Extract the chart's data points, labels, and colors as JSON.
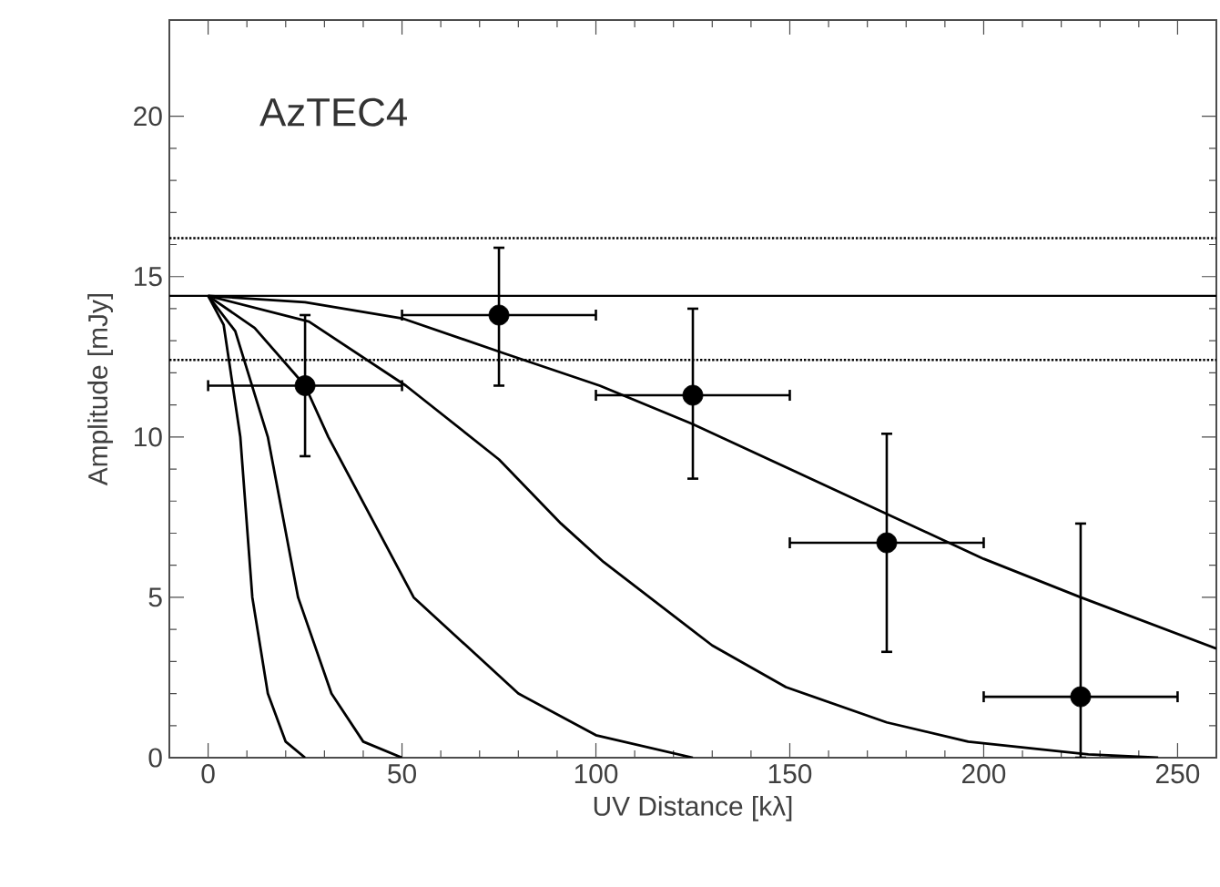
{
  "chart_data": {
    "type": "scatter",
    "title": "AzTEC4",
    "xlabel": "UV Distance [kλ]",
    "ylabel": "Amplitude [mJy]",
    "xlim": [
      -10,
      260
    ],
    "ylim": [
      0,
      23
    ],
    "xticks": [
      0,
      50,
      100,
      150,
      200,
      250
    ],
    "yticks": [
      0,
      5,
      10,
      15,
      20
    ],
    "grid": false,
    "series": [
      {
        "color": "#000000",
        "marker": "circle",
        "x": [
          25,
          75,
          125,
          175,
          225
        ],
        "values": [
          11.6,
          13.8,
          11.3,
          6.7,
          1.9
        ],
        "errors": [
          [
            9.4,
            13.8
          ],
          [
            11.6,
            15.9
          ],
          [
            8.7,
            14.0
          ],
          [
            3.3,
            10.1
          ],
          [
            0,
            7.3
          ]
        ],
        "xerrors": [
          25,
          25,
          25,
          25,
          25
        ]
      },
      {
        "type": "line",
        "color": "#000000",
        "line_style": "solid",
        "x": [
          0,
          4,
          8.3,
          11.4,
          15.4,
          20,
          25
        ],
        "values": [
          14.4,
          13.5,
          10,
          5,
          2,
          0.5,
          0
        ]
      },
      {
        "type": "line",
        "color": "#000000",
        "line_style": "solid",
        "x": [
          0,
          7,
          15.4,
          23.2,
          31.8,
          40,
          50
        ],
        "values": [
          14.4,
          13.3,
          10,
          5,
          2,
          0.5,
          0
        ]
      },
      {
        "type": "line",
        "color": "#000000",
        "line_style": "solid",
        "x": [
          0,
          12,
          25,
          31,
          53,
          80,
          100,
          125
        ],
        "values": [
          14.4,
          13.4,
          11.6,
          10,
          5,
          2,
          0.7,
          0
        ]
      },
      {
        "type": "line",
        "color": "#000000",
        "line_style": "solid",
        "x": [
          0,
          26,
          51,
          75,
          91,
          102,
          130,
          149,
          175,
          196,
          227,
          245
        ],
        "values": [
          14.4,
          13.6,
          11.6,
          9.3,
          7.3,
          6.1,
          3.5,
          2.2,
          1.1,
          0.5,
          0.1,
          0
        ]
      },
      {
        "type": "line",
        "color": "#000000",
        "line_style": "solid",
        "x": [
          0,
          25,
          50,
          76.5,
          101,
          125,
          150,
          175,
          200,
          225,
          260
        ],
        "values": [
          14.4,
          14.2,
          13.7,
          12.6,
          11.6,
          10.4,
          9.0,
          7.6,
          6.2,
          5.0,
          3.4
        ]
      }
    ],
    "ref_lines": [
      {
        "axis": "y",
        "value": 14.4,
        "color": "#000000",
        "line_style": "solid"
      },
      {
        "axis": "y",
        "value": 16.2,
        "color": "#000000",
        "line_style": "dotted"
      },
      {
        "axis": "y",
        "value": 12.4,
        "color": "#000000",
        "line_style": "dotted"
      }
    ]
  }
}
